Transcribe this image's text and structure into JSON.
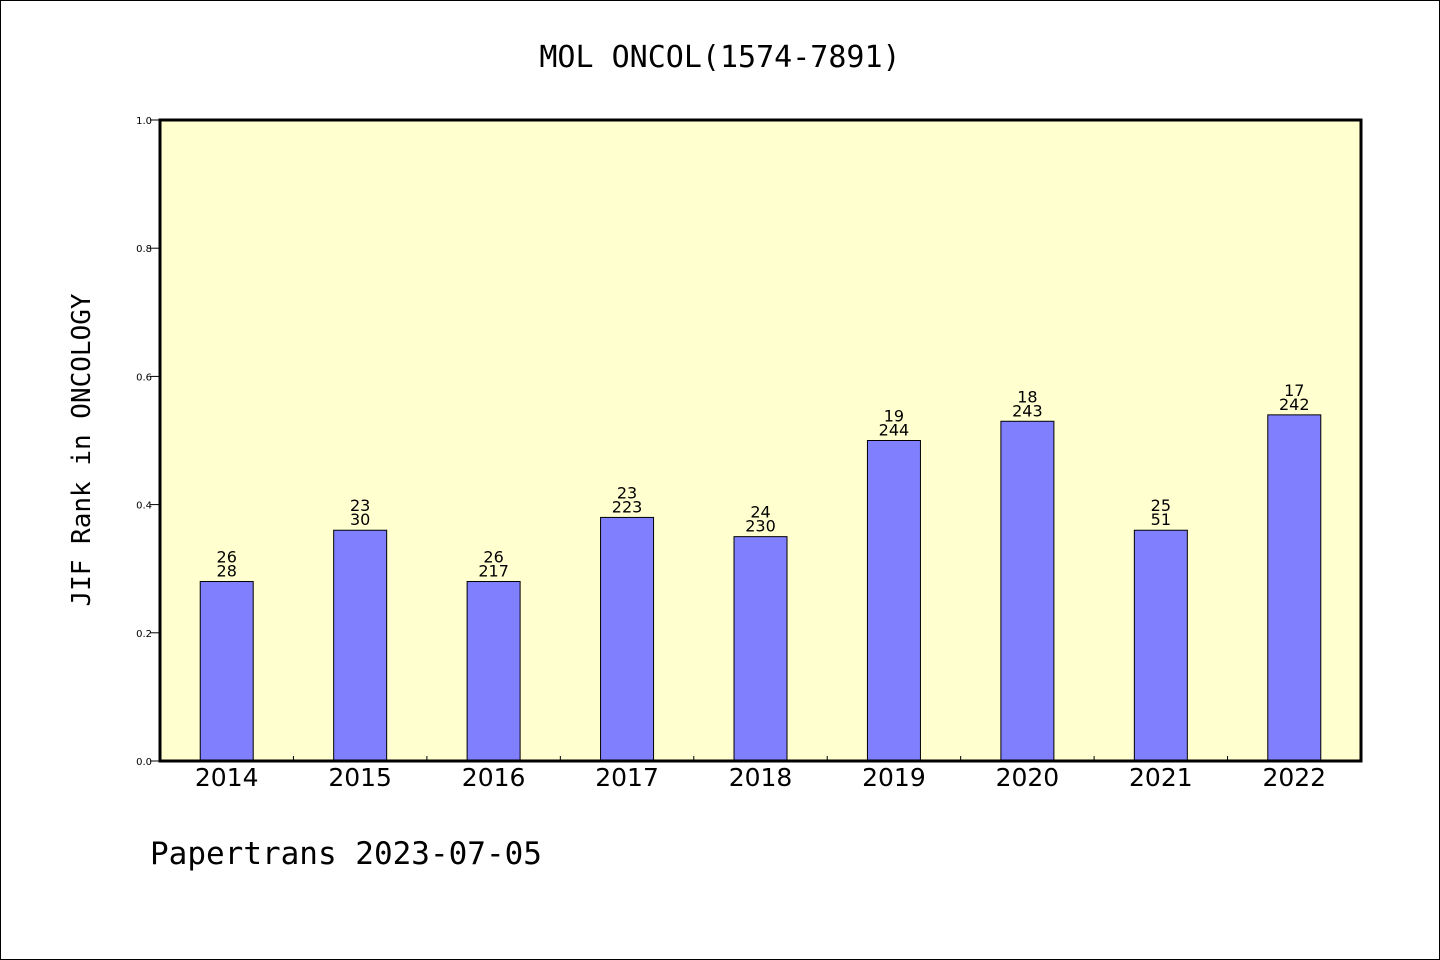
{
  "chart_data": {
    "type": "bar",
    "title": "MOL ONCOL(1574-7891)",
    "xlabel": "",
    "ylabel": "JIF Rank in ONCOLOGY",
    "ylim": [
      0,
      1.0
    ],
    "yticks": [
      "0.0",
      "0.2",
      "0.4",
      "0.6",
      "0.8",
      "1.0"
    ],
    "categories": [
      "2014",
      "2015",
      "2016",
      "2017",
      "2018",
      "2019",
      "2020",
      "2021",
      "2022"
    ],
    "values": [
      0.28,
      0.36,
      0.28,
      0.38,
      0.35,
      0.5,
      0.53,
      0.36,
      0.54
    ],
    "labels_top": [
      "26",
      "23",
      "26",
      "23",
      "24",
      "19",
      "18",
      "25",
      "17"
    ],
    "labels_bottom": [
      "28",
      "30",
      "217",
      "223",
      "230",
      "244",
      "243",
      "51",
      "242"
    ],
    "grid": false,
    "colors": {
      "plot_bg": "#ffffd0",
      "bar": "#8080ff",
      "bar_edge": "#000000"
    }
  },
  "footer": "Papertrans 2023-07-05"
}
